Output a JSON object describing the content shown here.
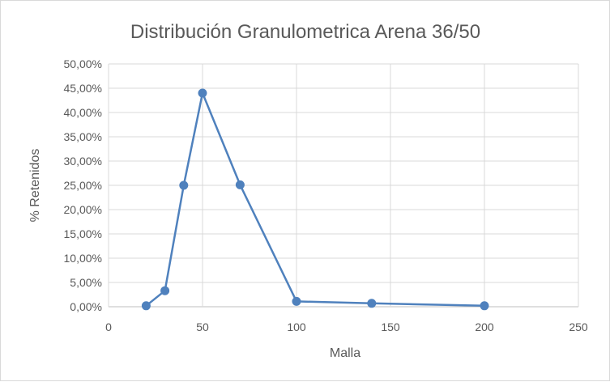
{
  "chart_data": {
    "type": "scatter",
    "title": "Distribución Granulometrica Arena 36/50",
    "xlabel": "Malla",
    "ylabel": "% Retenidos",
    "xlim": [
      0,
      250
    ],
    "ylim": [
      0,
      0.5
    ],
    "x_ticks": [
      0,
      50,
      100,
      150,
      200,
      250
    ],
    "x_tick_labels": [
      "0",
      "50",
      "100",
      "150",
      "200",
      "250"
    ],
    "y_ticks": [
      0,
      0.05,
      0.1,
      0.15,
      0.2,
      0.25,
      0.3,
      0.35,
      0.4,
      0.45,
      0.5
    ],
    "y_tick_labels": [
      "0,00%",
      "5,00%",
      "10,00%",
      "15,00%",
      "20,00%",
      "25,00%",
      "30,00%",
      "35,00%",
      "40,00%",
      "45,00%",
      "50,00%"
    ],
    "grid": true,
    "legend": "none",
    "series": [
      {
        "x": [
          20,
          30,
          40,
          50,
          70,
          100,
          140,
          200
        ],
        "y": [
          0.002,
          0.033,
          0.25,
          0.44,
          0.251,
          0.011,
          0.007,
          0.002
        ],
        "color": "#4f81bd",
        "style": "straight lines with markers"
      }
    ]
  }
}
